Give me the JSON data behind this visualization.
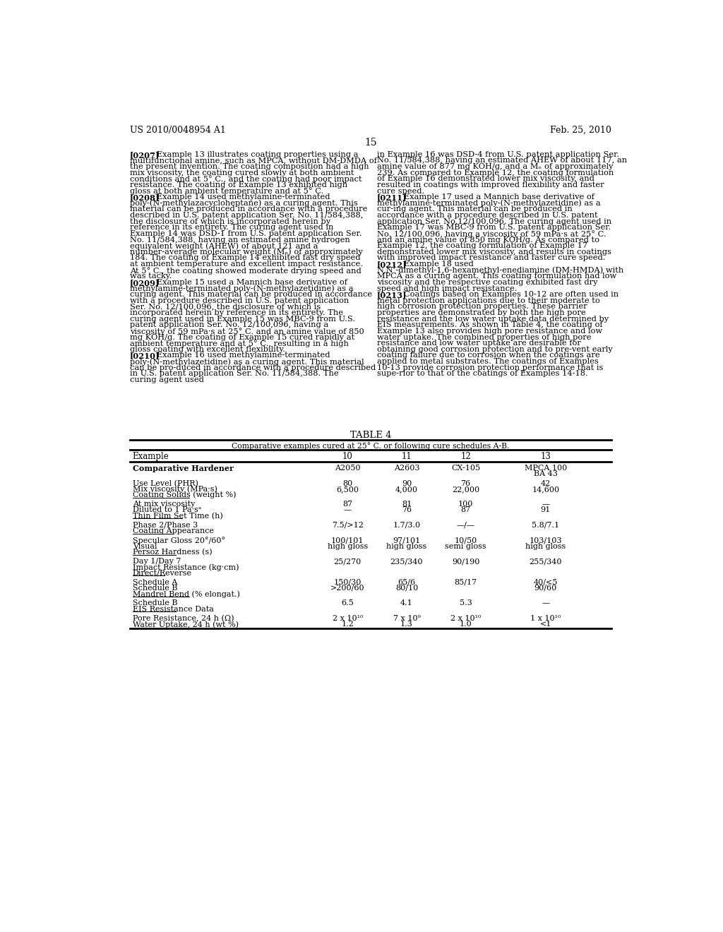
{
  "bg_color": "#ffffff",
  "header_left": "US 2010/0048954 A1",
  "header_right": "Feb. 25, 2010",
  "page_number": "15",
  "left_paragraphs": [
    {
      "tag": "[0207]",
      "text": "Example 13 illustrates coating properties using a multifunctional amine, such as MPCA, without DM-DMDA of the present invention. The coating composition had a high mix viscosity, the coating cured slowly at both ambient conditions and at 5° C., and the coating had poor impact resistance. The coating of Example 13 exhibited high gloss at both ambient temperature and at 5° C."
    },
    {
      "tag": "[0208]",
      "text": "Example 14 used methylamine-terminated poly-(N-methylazacycloheptane) as a curing agent. This material can be produced in accordance with a procedure described in U.S. patent application Ser. No. 11/584,388, the disclosure of which is incorporated herein by reference in its entirety. The curing agent used in Example 14 was DSD-1 from U.S. patent application Ser. No. 11/584,388, having an estimated amine hydrogen equivalent weight (AHEW) of about 121 and a number-average molecular weight (Mₙ) of approximately 184. The coating of Example 14 exhibited fast dry speed at ambient temperature and excellent impact resistance. At 5° C., the coating showed moderate drying speed and was tacky."
    },
    {
      "tag": "[0209]",
      "text": "Example 15 used a Mannich base derivative of methylamine-terminated poly-(N-methylazetidine) as a curing agent. This material can be produced in accordance with a procedure described in U.S. patent application Ser. No. 12/100,096, the disclosure of which is incorporated herein by reference in its entirety. The curing agent used in Example 15 was MBC-9 from U.S. patent application Ser. No. 12/100,096, having a viscosity of 59 mPa·s at 25° C. and an amine value of 850 mg KOH/g. The coating of Example 15 cured rapidly at ambient temperature and at 5° C., resulting in a high gloss coating with excellent flexibility."
    },
    {
      "tag": "[0210]",
      "text": "Example 16 used methylamine-terminated poly-(N-methylazetidine) as a curing agent. This material can be pro-duced in accordance with a procedure described in U.S. patent application Ser. No. 11/584,388. The curing agent used"
    }
  ],
  "right_paragraphs": [
    {
      "tag": "",
      "text": "in Example 16 was DSD-4 from U.S. patent application Ser. No. 11/584,388, having an estimated AHEW of about 117, an amine value of 877 mg KOH/g, and a Mₙ of approximately 239. As compared to Example 12, the coating formulation of Example 16 demonstrated lower mix viscosity, and resulted in coatings with improved flexibility and faster cure speed."
    },
    {
      "tag": "[0211]",
      "text": "Example 17 used a Mannich base derivative of methylamine-terminated poly-(N-methylazetidine) as a cur-ing agent. This material can be produced in accordance with a procedure described in U.S. patent application Ser. No.12/100,096. The curing agent used in Example 17 was MBC-9 from U.S. patent application Ser. No. 12/100,096, having a viscosity of 59 mPa·s at 25° C. and an amine value of 850 mg KOH/g. As compared to Example 12, the coating formulation of Example 17 demonstrated lower mix viscosity, and results in coatings with improved impact resistance and faster cure speed."
    },
    {
      "tag": "[0212]",
      "text": "Example 18 used N,N’-dimethyl-1,6-hexamethyl-enediamine (DM-HMDA) with MPCA as a curing agent. This coating formulation had low viscosity and the respective coating exhibited fast dry speed and high impact resistance."
    },
    {
      "tag": "[0213]",
      "text": "Coatings based on Examples 10-12 are often used in metal protection applications due to their moderate to high corrosion protection properties. These barrier properties are demonstrated by both the high pore resistance and the low water uptake data determined by EIS measurements. As shown in Table 4, the coating of Example 13 also provides high pore resistance and low water uptake. The combined properties of high pore resistance and low water uptake are desirable for obtaining good corrosion protection and to pre-vent early coating failure due to corrosion when the coatings are applied to metal substrates. The coatings of Examples 10-13 provide corrosion protection performance that is supe-rior to that of the coatings of Examples 14-18."
    }
  ],
  "table_title": "TABLE 4",
  "table_subtitle": "Comparative examples cured at 25° C. or following cure schedules A-B.",
  "col_headers": [
    "Example",
    "10",
    "11",
    "12",
    "13"
  ],
  "table_rows": [
    {
      "labels": [
        "Comparative Hardener"
      ],
      "values": [
        "A2050",
        "A2603",
        "CX-105",
        "MPCA 100\nBA 43"
      ],
      "underline_label": "",
      "bold_label": true
    },
    {
      "labels": [
        "Use Level (PHR)",
        "Mix viscosity (MPa·s)",
        "Coating Solids (weight %)"
      ],
      "values": [
        "80\n6,500",
        "90\n4,000",
        "76\n22,000",
        "42\n14,600"
      ],
      "underline_label": "Coating Solids (weight %)",
      "bold_label": false
    },
    {
      "labels": [
        "At mix viscosity",
        "Diluted to 1 Pa·sᵃ",
        "Thin Film Set Time (h)"
      ],
      "values": [
        "87\n—",
        "81\n76",
        "100\n87",
        "—\n91"
      ],
      "underline_label": "Thin Film Set Time (h)",
      "bold_label": false
    },
    {
      "labels": [
        "Phase 2/Phase 3",
        "Coating Appearance"
      ],
      "values": [
        "7.5/>12",
        "1.7/3.0",
        "—/—",
        "5.8/7.1"
      ],
      "underline_label": "Coating Appearance",
      "bold_label": false
    },
    {
      "labels": [
        "Specular Gloss 20°/60°",
        "Visual",
        "Persoz Hardness (s)"
      ],
      "values": [
        "100/101\nhigh gloss",
        "97/101\nhigh gloss",
        "10/50\nsemi gloss",
        "103/103\nhigh gloss"
      ],
      "underline_label": "Persoz Hardness (s)",
      "bold_label": false
    },
    {
      "labels": [
        "Day 1/Day 7",
        "Impact Resistance (kg·cm)",
        "Direct/Reverse"
      ],
      "values": [
        "25/270",
        "235/340",
        "90/190",
        "255/340"
      ],
      "underline_label": "Direct/Reverse",
      "bold_label": false
    },
    {
      "labels": [
        "Schedule A",
        "Schedule B",
        "Mandrel Bend (% elongat.)"
      ],
      "values": [
        "150/30\n>200/60",
        "65/6\n80/10",
        "85/17\n",
        "40/<5\n90/60"
      ],
      "underline_label": "Mandrel Bend (% elongat.)",
      "bold_label": false
    },
    {
      "labels": [
        "Schedule B",
        "EIS Resistance Data"
      ],
      "values": [
        "6.5",
        "4.1",
        "5.3",
        "—"
      ],
      "underline_label": "EIS Resistance Data",
      "bold_label": false
    },
    {
      "labels": [
        "Pore Resistance, 24 h (Ω)",
        "Water Uptake, 24 h (wt %)"
      ],
      "values": [
        "2 x 10¹⁰\n1.2",
        "7 x 10⁹\n1.3",
        "2 x 10¹⁰\n1.0",
        "1 x 10¹⁰\n<1"
      ],
      "underline_label": "",
      "bold_label": false
    }
  ]
}
